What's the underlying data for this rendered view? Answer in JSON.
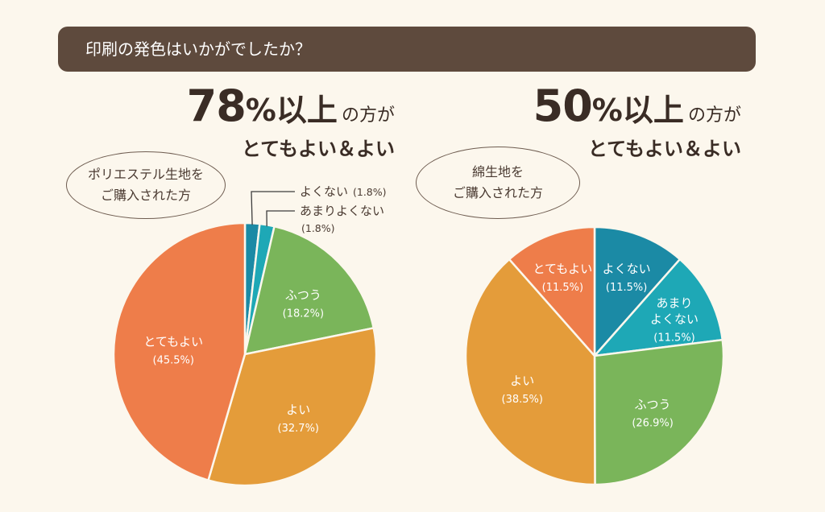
{
  "question": "印刷の発色はいかがでしたか？",
  "chart_data": [
    {
      "type": "pie",
      "headline": {
        "percent": "78",
        "percent_sign": "%",
        "ijou": "以上",
        "suffix": "の方が",
        "line2": "とてもよい＆よい"
      },
      "group_label": [
        "ポリエステル生地を",
        "ご購入された方"
      ],
      "slices": [
        {
          "label": "よくない",
          "value": 1.8,
          "display": "(1.8%)",
          "color": "#1b8aa5"
        },
        {
          "label": "あまりよくない",
          "value": 1.8,
          "display": "(1.8%)",
          "color": "#1ea8b6"
        },
        {
          "label": "ふつう",
          "value": 18.2,
          "display": "(18.2%)",
          "color": "#7ab55a"
        },
        {
          "label": "よい",
          "value": 32.7,
          "display": "(32.7%)",
          "color": "#e49c3a"
        },
        {
          "label": "とてもよい",
          "value": 45.5,
          "display": "(45.5%)",
          "color": "#ee7d4a"
        }
      ]
    },
    {
      "type": "pie",
      "headline": {
        "percent": "50",
        "percent_sign": "%",
        "ijou": "以上",
        "suffix": "の方が",
        "line2": "とてもよい＆よい"
      },
      "group_label": [
        "綿生地を",
        "ご購入された方"
      ],
      "slices": [
        {
          "label": "よくない",
          "value": 11.5,
          "display": "(11.5%)",
          "color": "#1b8aa5"
        },
        {
          "label": "あまり\nよくない",
          "value": 11.5,
          "display": "(11.5%)",
          "color": "#1ea8b6"
        },
        {
          "label": "ふつう",
          "value": 26.9,
          "display": "(26.9%)",
          "color": "#7ab55a"
        },
        {
          "label": "よい",
          "value": 38.5,
          "display": "(38.5%)",
          "color": "#e49c3a"
        },
        {
          "label": "とてもよい",
          "value": 11.5,
          "display": "(11.5%)",
          "color": "#ee7d4a"
        }
      ]
    }
  ]
}
